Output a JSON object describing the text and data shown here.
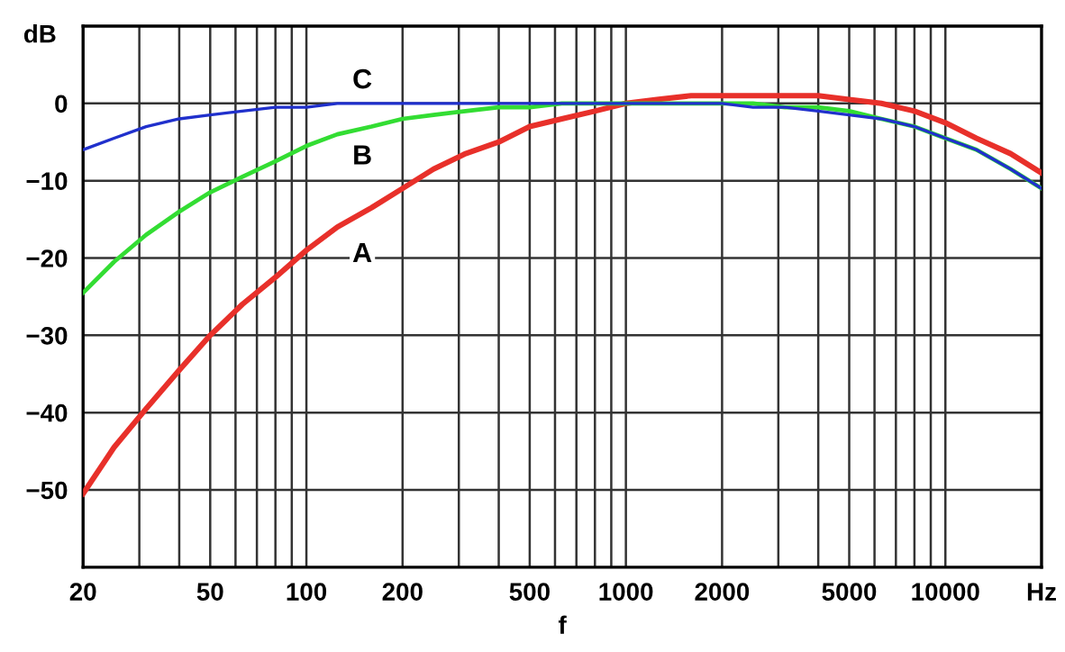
{
  "chart_data": {
    "type": "line",
    "xlabel": "f",
    "ylabel": "dB",
    "log": "x",
    "x": [
      20,
      25,
      31.5,
      40,
      50,
      63,
      80,
      100,
      125,
      160,
      200,
      250,
      315,
      400,
      500,
      630,
      800,
      1000,
      1250,
      1600,
      2000,
      2500,
      3150,
      4000,
      5000,
      6300,
      8000,
      10000,
      12500,
      16000,
      20000
    ],
    "series": [
      {
        "name": "A",
        "color": "#e8302a",
        "values": [
          -50.5,
          -44.5,
          -39.5,
          -34.5,
          -30,
          -26,
          -22.5,
          -19,
          -16,
          -13.5,
          -11,
          -8.5,
          -6.5,
          -5,
          -3,
          -2,
          -1,
          0,
          0.5,
          1,
          1,
          1,
          1,
          1,
          0.5,
          0,
          -1,
          -2.5,
          -4.5,
          -6.5,
          -9
        ]
      },
      {
        "name": "B",
        "color": "#33dd33",
        "values": [
          -24.5,
          -20.5,
          -17,
          -14,
          -11.5,
          -9.5,
          -7.5,
          -5.5,
          -4,
          -3,
          -2,
          -1.5,
          -1,
          -0.5,
          -0.5,
          0,
          0,
          0,
          0,
          0,
          0,
          0,
          -0.5,
          -0.5,
          -1,
          -2,
          -3,
          -4.5,
          -6,
          -8.5,
          -11
        ]
      },
      {
        "name": "C",
        "color": "#2030cc",
        "values": [
          -6,
          -4.5,
          -3,
          -2,
          -1.5,
          -1,
          -0.5,
          -0.5,
          0,
          0,
          0,
          0,
          0,
          0,
          0,
          0,
          0,
          0,
          0,
          0,
          0,
          -0.5,
          -0.5,
          -1,
          -1.5,
          -2,
          -3,
          -4.5,
          -6,
          -8.5,
          -11
        ]
      }
    ],
    "xlim": [
      20,
      20000
    ],
    "ylim": [
      -60,
      10
    ],
    "xticks": [
      20,
      {
        "value": 30,
        "label": null
      },
      {
        "value": 40,
        "label": null
      },
      50,
      {
        "value": 60,
        "label": null
      },
      {
        "value": 70,
        "label": null
      },
      {
        "value": 80,
        "label": null
      },
      {
        "value": 90,
        "label": null
      },
      100,
      200,
      {
        "value": 300,
        "label": null
      },
      {
        "value": 400,
        "label": null
      },
      500,
      {
        "value": 600,
        "label": null
      },
      {
        "value": 700,
        "label": null
      },
      {
        "value": 800,
        "label": null
      },
      {
        "value": 900,
        "label": null
      },
      1000,
      2000,
      {
        "value": 3000,
        "label": null
      },
      {
        "value": 4000,
        "label": null
      },
      5000,
      {
        "value": 6000,
        "label": null
      },
      {
        "value": 7000,
        "label": null
      },
      {
        "value": 8000,
        "label": null
      },
      {
        "value": 9000,
        "label": null
      },
      10000,
      {
        "value": 20000,
        "label": "Hz"
      }
    ],
    "yticks": [
      {
        "value": 0,
        "label": "0"
      },
      {
        "value": -10,
        "label": "−10"
      },
      {
        "value": -20,
        "label": "−20"
      },
      {
        "value": -30,
        "label": "−30"
      },
      {
        "value": -40,
        "label": "−40"
      },
      {
        "value": -50,
        "label": "−50"
      }
    ],
    "grid": true,
    "legend": false,
    "marker": "none",
    "line_style": "solid"
  }
}
